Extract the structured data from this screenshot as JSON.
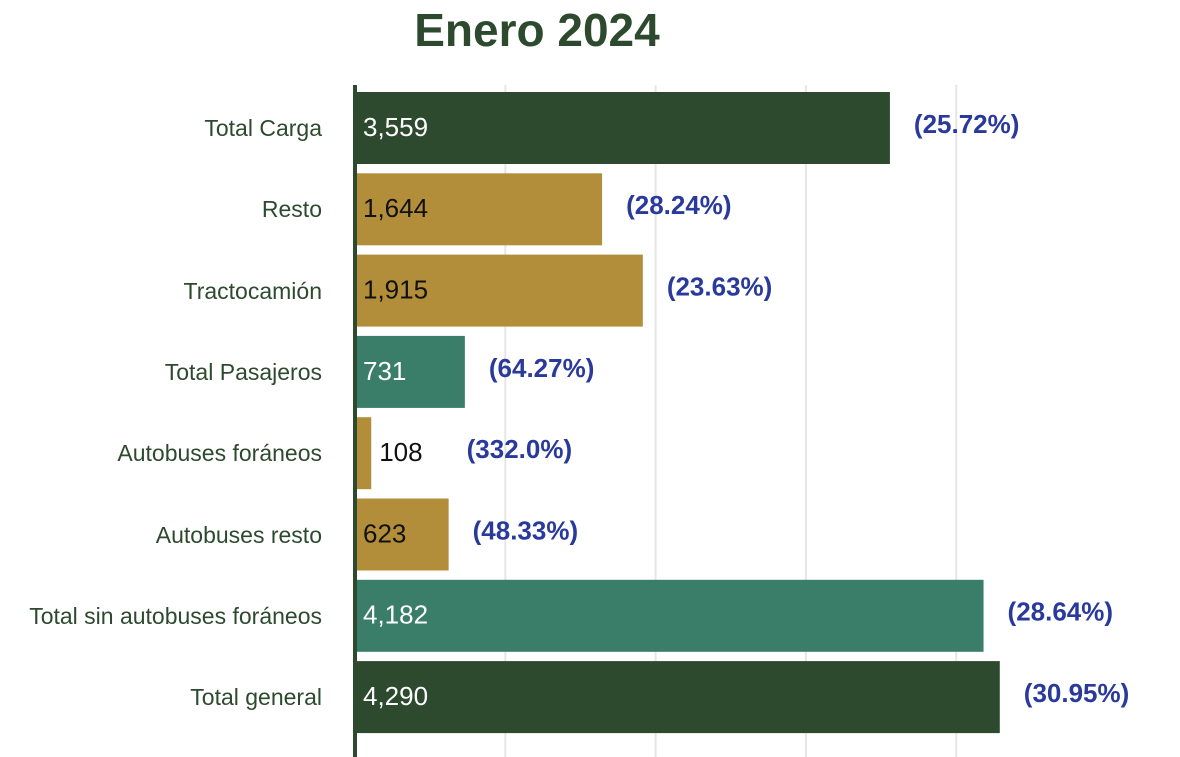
{
  "chart_data": {
    "type": "hbar",
    "title": "Enero 2024",
    "categories": [
      "Total Carga",
      "Resto",
      "Tractocamión",
      "Total Pasajeros",
      "Autobuses foráneos",
      "Autobuses resto",
      "Total sin autobuses foráneos",
      "Total general"
    ],
    "values": [
      3559,
      1644,
      1915,
      731,
      108,
      623,
      4182,
      4290
    ],
    "value_labels": [
      "3,559",
      "1,644",
      "1,915",
      "731",
      "108",
      "623",
      "4,182",
      "4,290"
    ],
    "annotations": [
      "(25.72%)",
      "(28.24%)",
      "(23.63%)",
      "(64.27%)",
      "(332.0%)",
      "(48.33%)",
      "(28.64%)",
      "(30.95%)"
    ],
    "colors": [
      "#2d4a2f",
      "#b38e3a",
      "#b38e3a",
      "#3a7d68",
      "#b38e3a",
      "#b38e3a",
      "#3a7d68",
      "#2d4a2f"
    ],
    "xlim": [
      0,
      4500
    ],
    "xticks": [
      0,
      1000,
      2000,
      3000,
      4000
    ],
    "grid": true
  }
}
